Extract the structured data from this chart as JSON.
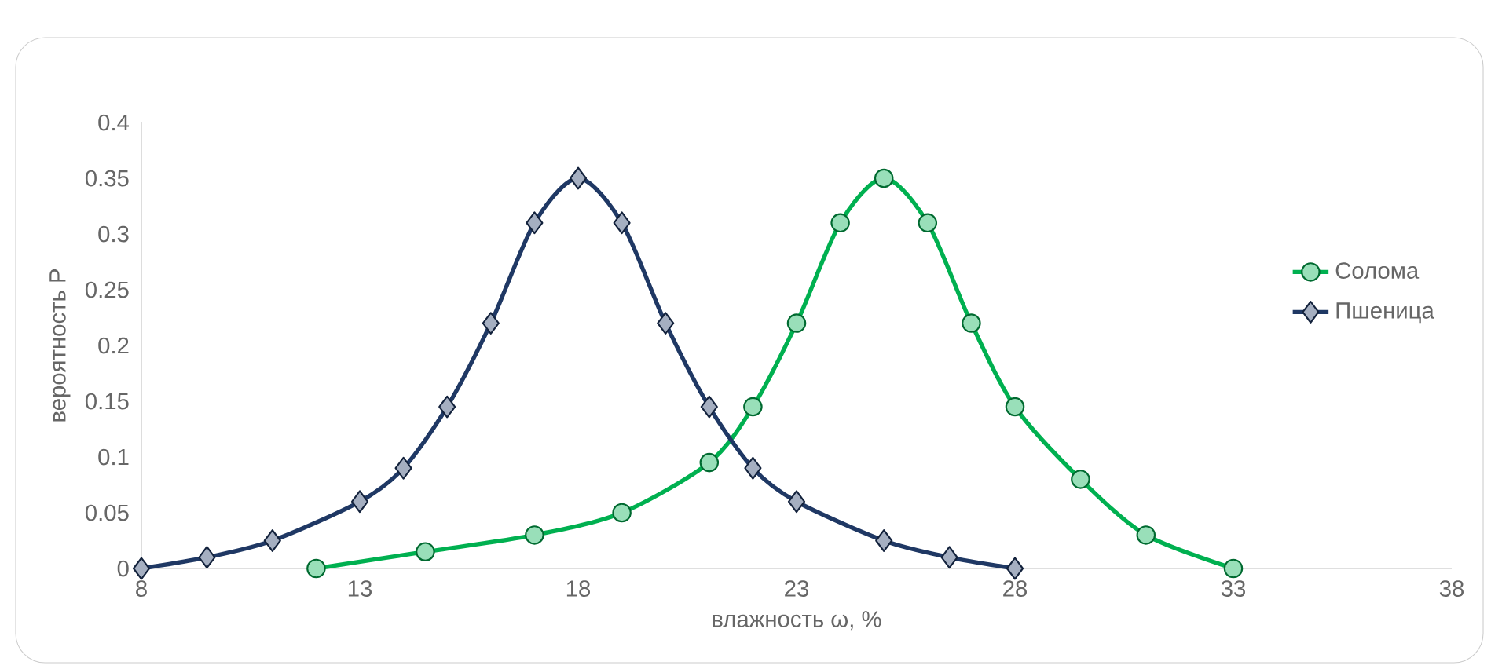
{
  "chart_data": {
    "type": "line",
    "xlabel": "влажность ω, %",
    "ylabel": "вероятность P",
    "xlim": [
      8,
      38
    ],
    "xticks": [
      8,
      13,
      18,
      23,
      28,
      33,
      38
    ],
    "ylim": [
      0,
      0.4
    ],
    "yticks": [
      0,
      0.05,
      0.1,
      0.15,
      0.2,
      0.25,
      0.3,
      0.35,
      0.4
    ],
    "grid": false,
    "legend": "right",
    "series": [
      {
        "name": "Солома",
        "color": "#00b050",
        "marker": "circle",
        "x": [
          12,
          14.5,
          17,
          19,
          21,
          22,
          23,
          24,
          25,
          26,
          27,
          28,
          29.5,
          31,
          33
        ],
        "values": [
          0,
          0.015,
          0.03,
          0.05,
          0.095,
          0.145,
          0.22,
          0.31,
          0.35,
          0.31,
          0.22,
          0.145,
          0.08,
          0.03,
          0
        ]
      },
      {
        "name": "Пшеница",
        "color": "#1f3864",
        "marker": "diamond",
        "x": [
          8,
          9.5,
          11,
          13,
          14,
          15,
          16,
          17,
          18,
          19,
          20,
          21,
          22,
          23,
          25,
          26.5,
          28
        ],
        "values": [
          0,
          0.01,
          0.025,
          0.06,
          0.09,
          0.145,
          0.22,
          0.31,
          0.35,
          0.31,
          0.22,
          0.145,
          0.09,
          0.06,
          0.025,
          0.01,
          0
        ]
      }
    ]
  }
}
